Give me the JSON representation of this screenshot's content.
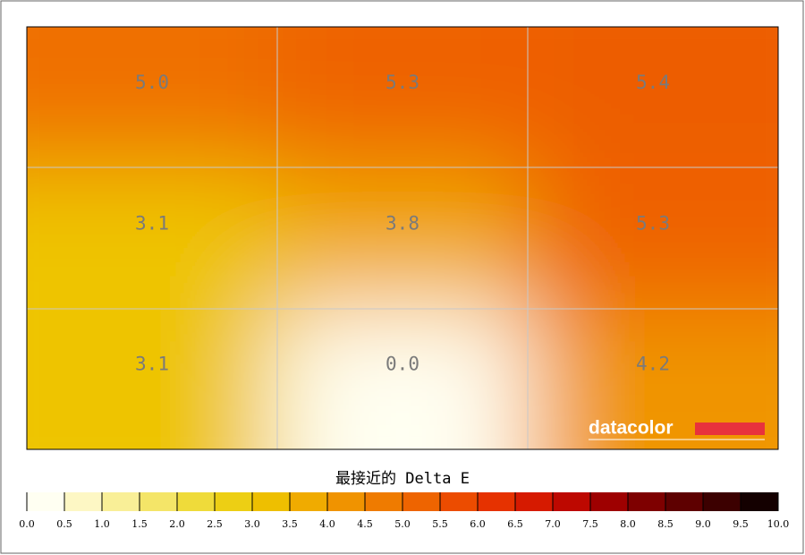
{
  "chart_data": {
    "type": "heatmap",
    "title": "最接近的 Delta E",
    "logo": "datacolor",
    "values": [
      [
        5.0,
        5.3,
        5.4
      ],
      [
        3.1,
        3.8,
        5.3
      ],
      [
        3.1,
        0.0,
        4.2
      ]
    ],
    "value_labels": [
      [
        "5.0",
        "5.3",
        "5.4"
      ],
      [
        "3.1",
        "3.8",
        "5.3"
      ],
      [
        "3.1",
        "0.0",
        "4.2"
      ]
    ],
    "colorscale": {
      "colors": [
        "#fffff2",
        "#fdf7c4",
        "#f9ef97",
        "#f4e568",
        "#efdb3a",
        "#edcf14",
        "#eebf00",
        "#f0ab00",
        "#f09300",
        "#ef7b00",
        "#ee6400",
        "#ec4c00",
        "#e63200",
        "#d61a00",
        "#bd0800",
        "#9e0000",
        "#7e0000",
        "#5e0000",
        "#3c0000",
        "#140000"
      ],
      "ticks": [
        {
          "value": 0,
          "label": "0.0"
        },
        0.5,
        {
          "value": 1,
          "label": "1.0"
        },
        1.5,
        {
          "value": 2,
          "label": "2.0"
        },
        2.5,
        {
          "value": 3,
          "label": "3.0"
        },
        3.5,
        {
          "value": 4,
          "label": "4.0"
        },
        4.5,
        {
          "value": 5,
          "label": "5.0"
        },
        5.5,
        {
          "value": 6,
          "label": "6.0"
        },
        6.5,
        {
          "value": 7,
          "label": "7.0"
        },
        7.5,
        {
          "value": 8,
          "label": "8.0"
        },
        8.5,
        {
          "value": 9,
          "label": "9.0"
        },
        9.5,
        {
          "value": 10,
          "label": "10.0"
        }
      ]
    }
  }
}
